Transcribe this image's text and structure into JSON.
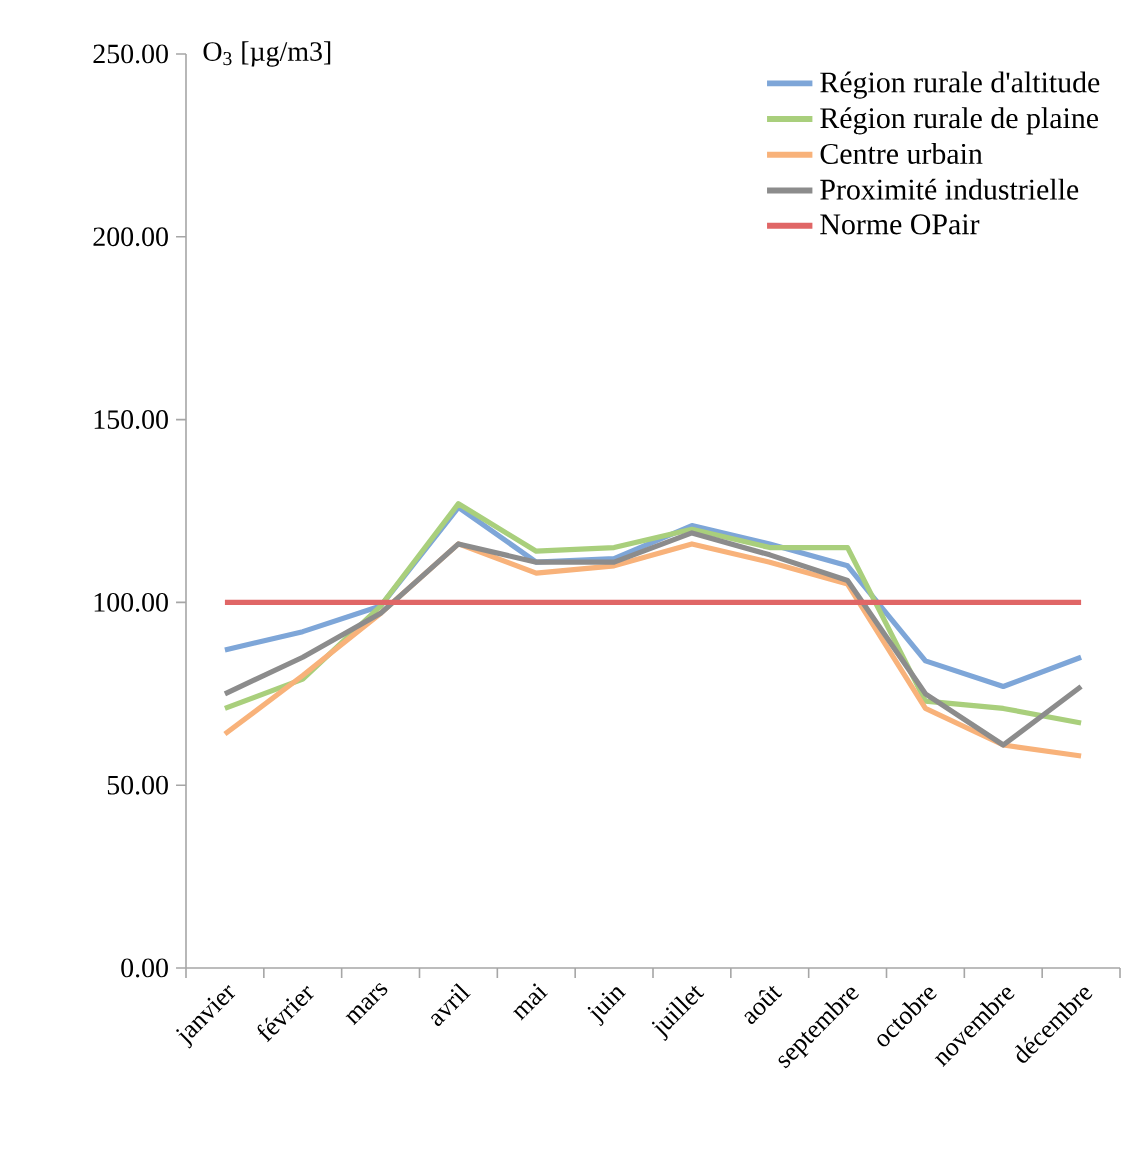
{
  "chart_data": {
    "type": "line",
    "ylabel": "O$_{3}$ [µg/m3]",
    "categories": [
      "janvier",
      "février",
      "mars",
      "avril",
      "mai",
      "juin",
      "juillet",
      "août",
      "septembre",
      "octobre",
      "novembre",
      "décembre"
    ],
    "series": [
      {
        "name": "Région rurale d'altitude",
        "color": "#7ea6d8",
        "values": [
          87,
          92,
          99,
          126,
          111,
          112,
          121,
          116,
          110,
          84,
          77,
          85
        ]
      },
      {
        "name": "Région rurale de plaine",
        "color": "#a9cf7c",
        "values": [
          71,
          79,
          99,
          127,
          114,
          115,
          120,
          115,
          115,
          73,
          71,
          67
        ]
      },
      {
        "name": "Centre urbain",
        "color": "#f8b27a",
        "values": [
          64,
          80,
          97,
          116,
          108,
          110,
          116,
          111,
          105,
          71,
          61,
          58
        ]
      },
      {
        "name": "Proximité industrielle",
        "color": "#8c8c8c",
        "values": [
          75,
          85,
          97,
          116,
          111,
          111,
          119,
          113,
          106,
          75,
          61,
          77
        ]
      },
      {
        "name": "Norme OPair",
        "color": "#e06666",
        "values": [
          100,
          100,
          100,
          100,
          100,
          100,
          100,
          100,
          100,
          100,
          100,
          100
        ]
      }
    ],
    "ylim": [
      0,
      250
    ],
    "yticks": [
      {
        "value": 0,
        "label": "0.00"
      },
      {
        "value": 50,
        "label": "50.00"
      },
      {
        "value": 100,
        "label": "100.00"
      },
      {
        "value": 150,
        "label": "150.00"
      },
      {
        "value": 200,
        "label": "200.00"
      },
      {
        "value": 250,
        "label": "250.00"
      }
    ],
    "grid": false,
    "legend": "top right",
    "marker": "none",
    "line_style": "solid"
  }
}
